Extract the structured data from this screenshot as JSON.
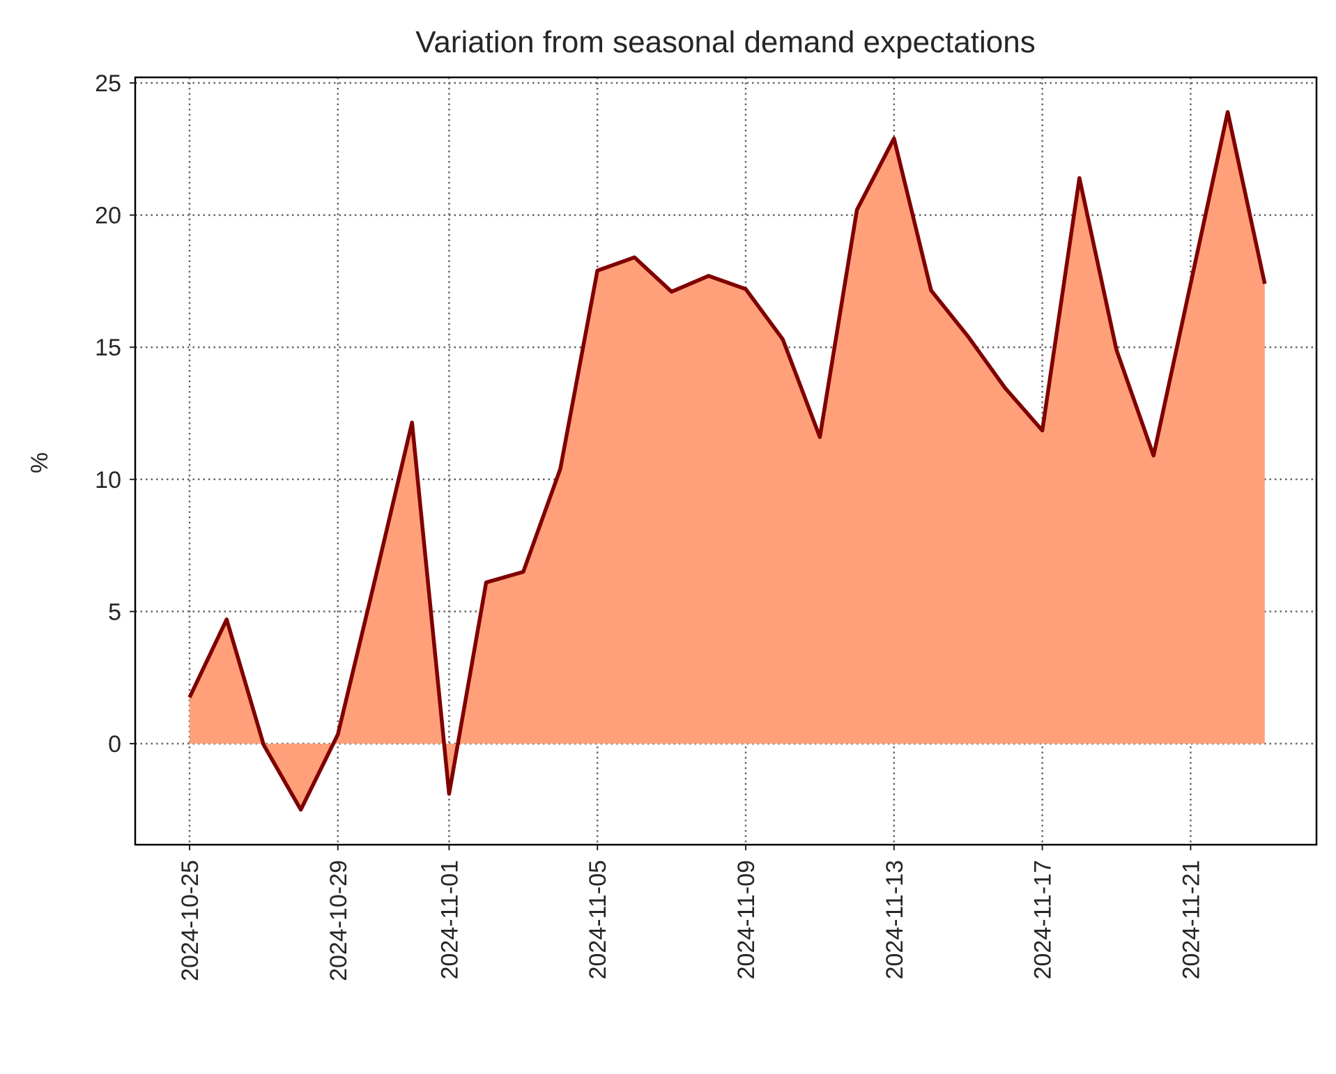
{
  "chart_data": {
    "type": "area",
    "title": "Variation from seasonal demand expectations",
    "xlabel": "",
    "ylabel": "%",
    "x": [
      "2024-10-25",
      "2024-10-26",
      "2024-10-27",
      "2024-10-28",
      "2024-10-29",
      "2024-10-30",
      "2024-10-31",
      "2024-11-01",
      "2024-11-02",
      "2024-11-03",
      "2024-11-04",
      "2024-11-05",
      "2024-11-06",
      "2024-11-07",
      "2024-11-08",
      "2024-11-09",
      "2024-11-10",
      "2024-11-11",
      "2024-11-12",
      "2024-11-13",
      "2024-11-14",
      "2024-11-15",
      "2024-11-16",
      "2024-11-17",
      "2024-11-18",
      "2024-11-19",
      "2024-11-20",
      "2024-11-21",
      "2024-11-22",
      "2024-11-23"
    ],
    "values": [
      1.75,
      4.7,
      -0.05,
      -2.5,
      0.35,
      6.2,
      12.15,
      -1.9,
      6.1,
      6.5,
      10.4,
      17.9,
      18.4,
      17.1,
      17.7,
      17.2,
      15.3,
      11.6,
      20.2,
      22.9,
      17.15,
      15.4,
      13.45,
      11.85,
      21.4,
      14.9,
      10.9,
      17.4,
      23.9,
      17.4
    ],
    "fill_baseline": 0,
    "xticks": [
      "2024-10-25",
      "2024-10-29",
      "2024-11-01",
      "2024-11-05",
      "2024-11-09",
      "2024-11-13",
      "2024-11-17",
      "2024-11-21"
    ],
    "yticks": [
      0,
      5,
      10,
      15,
      20,
      25
    ],
    "ylim": [
      -3.8,
      25.3
    ],
    "xlim": [
      "2024-10-24T12:00",
      "2024-11-24T12:00"
    ],
    "grid": true,
    "line_color": "#800000",
    "fill_color": "#FFA07A",
    "grid_color": "#666666"
  }
}
